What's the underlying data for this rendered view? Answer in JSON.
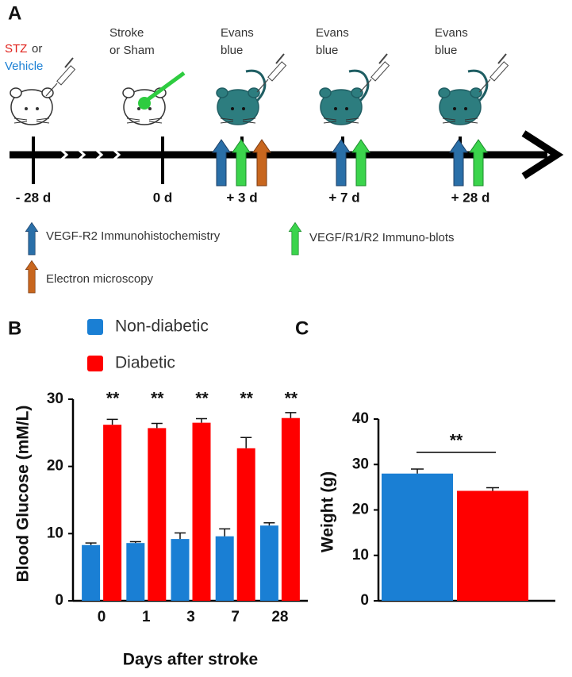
{
  "panel_labels": [
    "A",
    "B",
    "C"
  ],
  "timeline": {
    "treatment": {
      "stz": "STZ",
      "or": "or",
      "vehicle": "Vehicle"
    },
    "events": [
      {
        "top": [
          "Stroke",
          "or Sham"
        ]
      },
      {
        "top": [
          "Evans",
          "blue"
        ]
      },
      {
        "top": [
          "Evans",
          "blue"
        ]
      },
      {
        "top": [
          "Evans",
          "blue"
        ]
      }
    ],
    "days": [
      "- 28 d",
      "0 d",
      "+ 3 d",
      "+ 7 d",
      "+ 28 d"
    ],
    "legend": [
      "VEGF-R2 Immunohistochemistry",
      "VEGF/R1/R2 Immuno-blots",
      "Electron microscopy"
    ]
  },
  "chart_data": [
    {
      "type": "bar",
      "ylabel": "Blood Glucose (mM/L)",
      "xlabel": "Days after stroke",
      "categories": [
        "0",
        "1",
        "3",
        "7",
        "28"
      ],
      "series": [
        {
          "name": "Non-diabetic",
          "color": "#1a7fd4",
          "values": [
            8.3,
            8.6,
            9.2,
            9.6,
            11.2
          ],
          "errors": [
            0.3,
            0.2,
            0.9,
            1.1,
            0.4
          ]
        },
        {
          "name": "Diabetic",
          "color": "#ff0000",
          "values": [
            26.2,
            25.7,
            26.5,
            22.7,
            27.2
          ],
          "errors": [
            0.8,
            0.7,
            0.6,
            1.6,
            0.8
          ]
        }
      ],
      "annotations": [
        "**",
        "**",
        "**",
        "**",
        "**"
      ],
      "ylim": [
        0,
        30
      ],
      "yticks": [
        0,
        10,
        20,
        30
      ]
    },
    {
      "type": "bar",
      "ylabel": "Weight (g)",
      "categories": [
        null,
        null
      ],
      "values": [
        28,
        24.2
      ],
      "errors": [
        1,
        0.7
      ],
      "colors": [
        "#1a7fd4",
        "#ff0000"
      ],
      "annotation": "**",
      "ylim": [
        0,
        40
      ],
      "yticks": [
        0,
        10,
        20,
        30,
        40
      ]
    }
  ]
}
